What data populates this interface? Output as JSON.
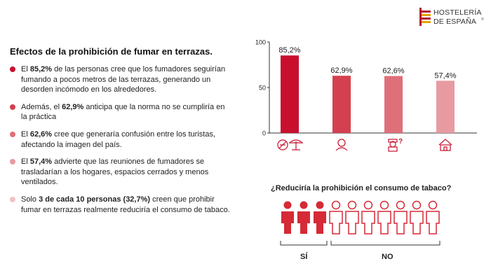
{
  "brand": {
    "line1": "HOSTELERÍA",
    "line2": "DE ESPAÑA",
    "mark": "®",
    "color": "#b5122b"
  },
  "heading": "Efectos de la prohibición de fumar en terrazas.",
  "findings": [
    {
      "pre": "El ",
      "bold": "85,2%",
      "post": " de las personas cree que los fumadores seguirían fumando a pocos metros de las terrazas, generando un desorden incómodo en los alrededores.",
      "color": "#c8102e"
    },
    {
      "pre": "Además, el ",
      "bold": "62,9%",
      "post": " anticipa que la norma no se cumpliría en la práctica",
      "color": "#d4404f"
    },
    {
      "pre": "El ",
      "bold": "62,6%",
      "post": " cree que generaría confusión entre los turistas, afectando la imagen del país.",
      "color": "#df6f79"
    },
    {
      "pre": "El ",
      "bold": "57,4%",
      "post": " advierte que las reuniones de fumadores se trasladarían a los hogares, espacios cerrados y menos ventilados.",
      "color": "#e89aa1"
    },
    {
      "pre": "Solo ",
      "bold": "3 de cada 10 personas (32,7%)",
      "post": " creen que prohibir fumar en terrazas realmente reduciría el consumo de tabaco.",
      "color": "#f2c2c6"
    }
  ],
  "chart_data": {
    "type": "bar",
    "categories": [
      "smoking-near-terrace-icon",
      "person-icon",
      "tourist-question-icon",
      "home-icon"
    ],
    "values": [
      85.2,
      62.9,
      62.6,
      57.4
    ],
    "value_labels": [
      "85,2%",
      "62,9%",
      "62,6%",
      "57,4%"
    ],
    "colors": [
      "#c8102e",
      "#d4404f",
      "#df6f79",
      "#e89aa1"
    ],
    "ylim": [
      0,
      100
    ],
    "yticks": [
      0,
      50,
      100
    ],
    "ytick_labels": [
      "0",
      "50",
      "100"
    ],
    "grid": false,
    "legend": "none"
  },
  "question": "¿Reduciría la prohibición el consumo de tabaco?",
  "people": {
    "total": 10,
    "yes_count": 3,
    "yes_label": "SÍ",
    "no_label": "NO",
    "yes_color": "#d62a36",
    "no_color": "#d62a36"
  }
}
